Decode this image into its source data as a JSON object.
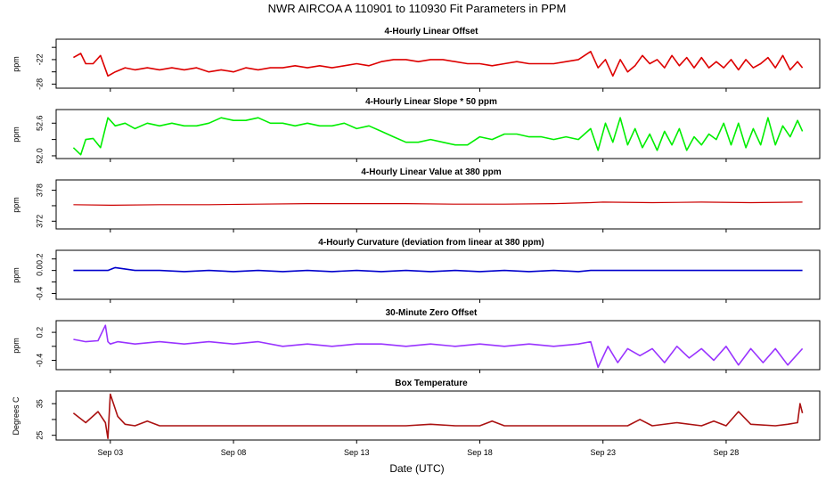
{
  "title": "NWR   AIRCOA A   110901 to 110930   Fit Parameters in PPM",
  "xlabel": "Date (UTC)",
  "x_ticks": [
    "Sep 03",
    "Sep 08",
    "Sep 13",
    "Sep 18",
    "Sep 23",
    "Sep 28"
  ],
  "x_tick_days": [
    3,
    8,
    13,
    18,
    23,
    28
  ],
  "x_range": [
    0.8,
    31.8
  ],
  "chart_data": [
    {
      "type": "line",
      "title": "4-Hourly Linear Offset",
      "ylabel": "ppm",
      "yticks": [
        "-28",
        "-22"
      ],
      "ytick_values": [
        -28,
        -25,
        -22,
        -19
      ],
      "ylim": [
        -29,
        -17
      ],
      "color": "#dd0000",
      "series": [
        {
          "x": [
            1.5,
            1.8,
            2.0,
            2.3,
            2.6,
            2.9,
            3.2,
            3.6,
            4.0,
            4.5,
            5.0,
            5.5,
            6.0,
            6.5,
            7.0,
            7.5,
            8.0,
            8.5,
            9.0,
            9.5,
            10.0,
            10.5,
            11.0,
            11.5,
            12.0,
            12.5,
            13.0,
            13.5,
            14.0,
            14.5,
            15.0,
            15.5,
            16.0,
            16.5,
            17.0,
            17.5,
            18.0,
            18.5,
            19.0,
            19.5,
            20.0,
            20.5,
            21.0,
            21.5,
            22.0,
            22.5,
            22.8,
            23.1,
            23.4,
            23.7,
            24.0,
            24.3,
            24.6,
            24.9,
            25.2,
            25.5,
            25.8,
            26.1,
            26.4,
            26.7,
            27.0,
            27.3,
            27.6,
            27.9,
            28.2,
            28.5,
            28.8,
            29.1,
            29.4,
            29.7,
            30.0,
            30.3,
            30.6,
            30.9,
            31.1
          ],
          "y": [
            -21.5,
            -20.5,
            -23.0,
            -23.0,
            -21.0,
            -26.0,
            -25.0,
            -24.0,
            -24.5,
            -24.0,
            -24.5,
            -24.0,
            -24.5,
            -24.0,
            -25.0,
            -24.5,
            -25.0,
            -24.0,
            -24.5,
            -24.0,
            -24.0,
            -23.5,
            -24.0,
            -23.5,
            -24.0,
            -23.5,
            -23.0,
            -23.5,
            -22.5,
            -22.0,
            -22.0,
            -22.5,
            -22.0,
            -22.0,
            -22.5,
            -23.0,
            -23.0,
            -23.5,
            -23.0,
            -22.5,
            -23.0,
            -23.0,
            -23.0,
            -22.5,
            -22.0,
            -20.0,
            -24.0,
            -22.0,
            -26.0,
            -22.0,
            -25.0,
            -23.5,
            -21.0,
            -23.0,
            -22.0,
            -24.0,
            -21.0,
            -23.5,
            -21.5,
            -24.0,
            -21.5,
            -24.0,
            -22.5,
            -24.0,
            -22.0,
            -24.5,
            -22.0,
            -24.0,
            -23.0,
            -21.5,
            -24.0,
            -21.0,
            -24.5,
            -22.5,
            -24.0
          ]
        }
      ]
    },
    {
      "type": "line",
      "title": "4-Hourly Linear Slope * 50 ppm",
      "ylabel": "ppm",
      "yticks": [
        "52.0",
        "52.6"
      ],
      "ytick_values": [
        52.0,
        52.3,
        52.6
      ],
      "ylim": [
        51.95,
        52.85
      ],
      "color": "#00ee00",
      "series": [
        {
          "x": [
            1.5,
            1.8,
            2.0,
            2.3,
            2.6,
            2.9,
            3.2,
            3.6,
            4.0,
            4.5,
            5.0,
            5.5,
            6.0,
            6.5,
            7.0,
            7.5,
            8.0,
            8.5,
            9.0,
            9.5,
            10.0,
            10.5,
            11.0,
            11.5,
            12.0,
            12.5,
            13.0,
            13.5,
            14.0,
            14.5,
            15.0,
            15.5,
            16.0,
            16.5,
            17.0,
            17.5,
            18.0,
            18.5,
            19.0,
            19.5,
            20.0,
            20.5,
            21.0,
            21.5,
            22.0,
            22.5,
            22.8,
            23.1,
            23.4,
            23.7,
            24.0,
            24.3,
            24.6,
            24.9,
            25.2,
            25.5,
            25.8,
            26.1,
            26.4,
            26.7,
            27.0,
            27.3,
            27.6,
            27.9,
            28.2,
            28.5,
            28.8,
            29.1,
            29.4,
            29.7,
            30.0,
            30.3,
            30.6,
            30.9,
            31.1
          ],
          "y": [
            52.15,
            52.02,
            52.3,
            52.32,
            52.15,
            52.7,
            52.55,
            52.6,
            52.5,
            52.6,
            52.55,
            52.6,
            52.55,
            52.55,
            52.6,
            52.7,
            52.65,
            52.65,
            52.7,
            52.6,
            52.6,
            52.55,
            52.6,
            52.55,
            52.55,
            52.6,
            52.5,
            52.55,
            52.45,
            52.35,
            52.25,
            52.25,
            52.3,
            52.25,
            52.2,
            52.2,
            52.35,
            52.3,
            52.4,
            52.4,
            52.35,
            52.35,
            52.3,
            52.35,
            52.3,
            52.5,
            52.1,
            52.6,
            52.25,
            52.7,
            52.2,
            52.5,
            52.15,
            52.4,
            52.1,
            52.45,
            52.2,
            52.5,
            52.1,
            52.35,
            52.2,
            52.4,
            52.3,
            52.6,
            52.2,
            52.6,
            52.15,
            52.5,
            52.2,
            52.7,
            52.2,
            52.55,
            52.35,
            52.65,
            52.45
          ]
        }
      ]
    },
    {
      "type": "line",
      "title": "4-Hourly Linear Value at 380 ppm",
      "ylabel": "ppm",
      "yticks": [
        "372",
        "378"
      ],
      "ytick_values": [
        372,
        375,
        378
      ],
      "ylim": [
        370.5,
        380
      ],
      "color": "#cc0000",
      "series": [
        {
          "x": [
            1.5,
            3.0,
            5.0,
            7.0,
            9.0,
            11.0,
            13.0,
            15.0,
            17.0,
            19.0,
            21.0,
            22.5,
            23.0,
            25.0,
            27.0,
            29.0,
            31.1
          ],
          "y": [
            375.2,
            375.1,
            375.2,
            375.2,
            375.3,
            375.4,
            375.4,
            375.4,
            375.3,
            375.3,
            375.4,
            375.6,
            375.7,
            375.6,
            375.7,
            375.6,
            375.7
          ]
        }
      ]
    },
    {
      "type": "line",
      "title": "4-Hourly Curvature (deviation from linear at 380 ppm)",
      "ylabel": "ppm",
      "yticks": [
        "-0.4",
        "0.0",
        "0.2"
      ],
      "ytick_values": [
        -0.4,
        -0.2,
        0.0,
        0.2
      ],
      "ylim": [
        -0.5,
        0.35
      ],
      "color": "#0000cc",
      "series": [
        {
          "x": [
            1.5,
            2.9,
            3.2,
            4.0,
            5.0,
            6.0,
            7.0,
            8.0,
            9.0,
            10.0,
            11.0,
            12.0,
            13.0,
            14.0,
            15.0,
            16.0,
            17.0,
            18.0,
            19.0,
            20.0,
            21.0,
            22.0,
            22.5,
            23.0,
            25.0,
            27.0,
            29.0,
            31.1
          ],
          "y": [
            0.0,
            0.0,
            0.05,
            0.0,
            0.0,
            -0.02,
            0.0,
            -0.02,
            0.0,
            -0.02,
            0.0,
            -0.02,
            0.0,
            -0.02,
            0.0,
            -0.02,
            0.0,
            -0.02,
            0.0,
            -0.02,
            0.0,
            -0.02,
            0.0,
            0.0,
            0.0,
            0.0,
            0.0,
            0.0
          ]
        }
      ]
    },
    {
      "type": "line",
      "title": "30-Minute Zero Offset",
      "ylabel": "ppm",
      "yticks": [
        "-0.4",
        "0.2"
      ],
      "ytick_values": [
        -0.4,
        -0.1,
        0.2
      ],
      "ylim": [
        -0.6,
        0.45
      ],
      "color": "#9933ff",
      "series": [
        {
          "x": [
            1.5,
            2.0,
            2.5,
            2.8,
            2.9,
            3.0,
            3.3,
            4.0,
            5.0,
            6.0,
            7.0,
            8.0,
            9.0,
            10.0,
            11.0,
            12.0,
            13.0,
            14.0,
            15.0,
            16.0,
            17.0,
            18.0,
            19.0,
            20.0,
            21.0,
            22.0,
            22.5,
            22.8,
            23.2,
            23.6,
            24.0,
            24.5,
            25.0,
            25.5,
            26.0,
            26.5,
            27.0,
            27.5,
            28.0,
            28.5,
            29.0,
            29.5,
            30.0,
            30.5,
            31.1
          ],
          "y": [
            0.05,
            0.0,
            0.02,
            0.35,
            0.0,
            -0.05,
            0.0,
            -0.05,
            0.0,
            -0.05,
            0.0,
            -0.05,
            0.0,
            -0.1,
            -0.05,
            -0.1,
            -0.05,
            -0.05,
            -0.1,
            -0.05,
            -0.1,
            -0.05,
            -0.1,
            -0.05,
            -0.1,
            -0.05,
            0.0,
            -0.55,
            -0.1,
            -0.45,
            -0.15,
            -0.3,
            -0.15,
            -0.45,
            -0.1,
            -0.35,
            -0.15,
            -0.4,
            -0.1,
            -0.5,
            -0.15,
            -0.45,
            -0.15,
            -0.5,
            -0.15
          ]
        }
      ]
    },
    {
      "type": "line",
      "title": "Box Temperature",
      "ylabel": "Degrees C",
      "yticks": [
        "25",
        "35"
      ],
      "ytick_values": [
        25,
        30,
        35
      ],
      "ylim": [
        23.5,
        39
      ],
      "color": "#aa1111",
      "series": [
        {
          "x": [
            1.5,
            2.0,
            2.5,
            2.8,
            2.9,
            3.0,
            3.3,
            3.6,
            4.0,
            4.5,
            5.0,
            6.0,
            7.0,
            8.0,
            9.0,
            10.0,
            11.0,
            12.0,
            13.0,
            14.0,
            15.0,
            16.0,
            17.0,
            18.0,
            18.5,
            19.0,
            20.0,
            21.0,
            22.0,
            23.0,
            24.0,
            24.5,
            25.0,
            26.0,
            27.0,
            27.5,
            28.0,
            28.5,
            29.0,
            30.0,
            30.5,
            30.9,
            31.0,
            31.1
          ],
          "y": [
            32.0,
            29.0,
            32.5,
            29.0,
            24.0,
            38.0,
            31.0,
            28.5,
            28.0,
            29.5,
            28.0,
            28.0,
            28.0,
            28.0,
            28.0,
            28.0,
            28.0,
            28.0,
            28.0,
            28.0,
            28.0,
            28.5,
            28.0,
            28.0,
            29.5,
            28.0,
            28.0,
            28.0,
            28.0,
            28.0,
            28.0,
            30.0,
            28.0,
            29.0,
            28.0,
            29.5,
            28.0,
            32.5,
            28.5,
            28.0,
            28.5,
            29.0,
            35.0,
            32.0
          ]
        }
      ]
    }
  ]
}
